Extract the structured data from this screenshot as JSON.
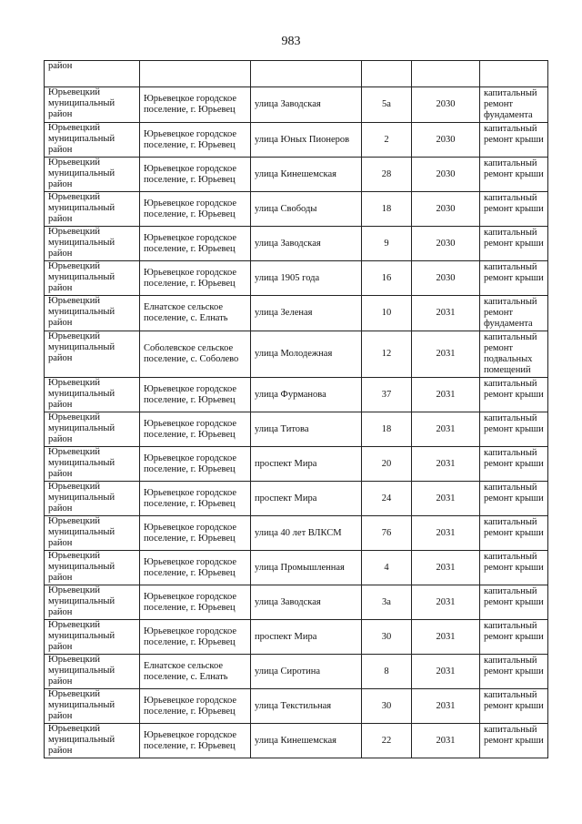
{
  "page_number": "983",
  "first_row_fragment": "район",
  "rows": [
    {
      "district": "Юрьевецкий муниципальный район",
      "settlement": "Юрьевецкое городское поселение, г. Юрьевец",
      "street": "улица Заводская",
      "house": "5а",
      "year": "2030",
      "work": "капитальный ремонт фундамента"
    },
    {
      "district": "Юрьевецкий муниципальный район",
      "settlement": "Юрьевецкое городское поселение, г. Юрьевец",
      "street": "улица Юных Пионеров",
      "house": "2",
      "year": "2030",
      "work": "капитальный ремонт крыши"
    },
    {
      "district": "Юрьевецкий муниципальный район",
      "settlement": "Юрьевецкое городское поселение, г. Юрьевец",
      "street": "улица Кинешемская",
      "house": "28",
      "year": "2030",
      "work": "капитальный ремонт крыши"
    },
    {
      "district": "Юрьевецкий муниципальный район",
      "settlement": "Юрьевецкое городское поселение, г. Юрьевец",
      "street": "улица Свободы",
      "house": "18",
      "year": "2030",
      "work": "капитальный ремонт крыши"
    },
    {
      "district": "Юрьевецкий муниципальный район",
      "settlement": "Юрьевецкое городское поселение, г. Юрьевец",
      "street": "улица Заводская",
      "house": "9",
      "year": "2030",
      "work": "капитальный ремонт крыши"
    },
    {
      "district": "Юрьевецкий муниципальный район",
      "settlement": "Юрьевецкое городское поселение, г. Юрьевец",
      "street": "улица 1905 года",
      "house": "16",
      "year": "2030",
      "work": "капитальный ремонт крыши"
    },
    {
      "district": "Юрьевецкий муниципальный район",
      "settlement": "Елнатское сельское поселение, с. Елнать",
      "street": "улица Зеленая",
      "house": "10",
      "year": "2031",
      "work": "капитальный ремонт фундамента"
    },
    {
      "district": "Юрьевецкий муниципальный район",
      "settlement": "Соболевское сельское поселение, с. Соболево",
      "street": "улица Молодежная",
      "house": "12",
      "year": "2031",
      "work": "капитальный ремонт подвальных помещений"
    },
    {
      "district": "Юрьевецкий муниципальный район",
      "settlement": "Юрьевецкое городское поселение, г. Юрьевец",
      "street": "улица Фурманова",
      "house": "37",
      "year": "2031",
      "work": "капитальный ремонт крыши"
    },
    {
      "district": "Юрьевецкий муниципальный район",
      "settlement": "Юрьевецкое городское поселение, г. Юрьевец",
      "street": "улица Титова",
      "house": "18",
      "year": "2031",
      "work": "капитальный ремонт крыши"
    },
    {
      "district": "Юрьевецкий муниципальный район",
      "settlement": "Юрьевецкое городское поселение, г. Юрьевец",
      "street": "проспект Мира",
      "house": "20",
      "year": "2031",
      "work": "капитальный ремонт крыши"
    },
    {
      "district": "Юрьевецкий муниципальный район",
      "settlement": "Юрьевецкое городское поселение, г. Юрьевец",
      "street": "проспект Мира",
      "house": "24",
      "year": "2031",
      "work": "капитальный ремонт крыши"
    },
    {
      "district": "Юрьевецкий муниципальный район",
      "settlement": "Юрьевецкое городское поселение, г. Юрьевец",
      "street": "улица 40 лет ВЛКСМ",
      "house": "76",
      "year": "2031",
      "work": "капитальный ремонт крыши"
    },
    {
      "district": "Юрьевецкий муниципальный район",
      "settlement": "Юрьевецкое городское поселение, г. Юрьевец",
      "street": "улица Промышленная",
      "house": "4",
      "year": "2031",
      "work": "капитальный ремонт крыши"
    },
    {
      "district": "Юрьевецкий муниципальный район",
      "settlement": "Юрьевецкое городское поселение, г. Юрьевец",
      "street": "улица Заводская",
      "house": "3а",
      "year": "2031",
      "work": "капитальный ремонт крыши"
    },
    {
      "district": "Юрьевецкий муниципальный район",
      "settlement": "Юрьевецкое городское поселение, г. Юрьевец",
      "street": "проспект Мира",
      "house": "30",
      "year": "2031",
      "work": "капитальный ремонт крыши"
    },
    {
      "district": "Юрьевецкий муниципальный район",
      "settlement": "Елнатское сельское поселение, с. Елнать",
      "street": "улица Сиротина",
      "house": "8",
      "year": "2031",
      "work": "капитальный ремонт крыши"
    },
    {
      "district": "Юрьевецкий муниципальный район",
      "settlement": "Юрьевецкое городское поселение, г. Юрьевец",
      "street": "улица Текстильная",
      "house": "30",
      "year": "2031",
      "work": "капитальный ремонт крыши"
    },
    {
      "district": "Юрьевецкий муниципальный район",
      "settlement": "Юрьевецкое городское поселение, г. Юрьевец",
      "street": "улица Кинешемская",
      "house": "22",
      "year": "2031",
      "work": "капитальный ремонт крыши"
    }
  ]
}
